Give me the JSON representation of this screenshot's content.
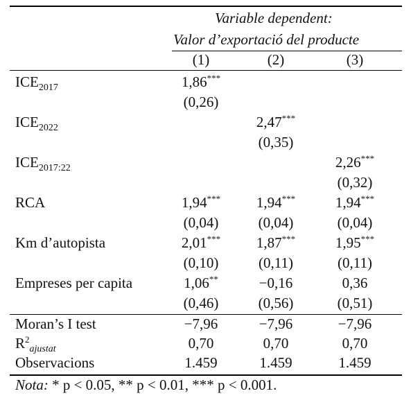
{
  "header": {
    "line1": "Variable dependent:",
    "line2": "Valor d’exportació del producte",
    "cols": [
      "(1)",
      "(2)",
      "(3)"
    ]
  },
  "rows": [
    {
      "label": "ICE",
      "sub": "2017",
      "vals": [
        "1,86",
        "",
        ""
      ],
      "stars": [
        "***",
        "",
        ""
      ],
      "se": [
        "(0,26)",
        "",
        ""
      ]
    },
    {
      "label": "ICE",
      "sub": "2022",
      "vals": [
        "",
        "2,47",
        ""
      ],
      "stars": [
        "",
        "***",
        ""
      ],
      "se": [
        "",
        "(0,35)",
        ""
      ]
    },
    {
      "label": "ICE",
      "sub": "2017:22",
      "vals": [
        "",
        "",
        "2,26"
      ],
      "stars": [
        "",
        "",
        "***"
      ],
      "se": [
        "",
        "",
        "(0,32)"
      ]
    },
    {
      "label": "RCA",
      "sub": "",
      "vals": [
        "1,94",
        "1,94",
        "1,94"
      ],
      "stars": [
        "***",
        "***",
        "***"
      ],
      "se": [
        "(0,04)",
        "(0,04)",
        "(0,04)"
      ]
    },
    {
      "label": "Km d’autopista",
      "sub": "",
      "vals": [
        "2,01",
        "1,87",
        "1,95"
      ],
      "stars": [
        "***",
        "***",
        "***"
      ],
      "se": [
        "(0,10)",
        "(0,11)",
        "(0,11)"
      ]
    },
    {
      "label": "Empreses per capita",
      "sub": "",
      "vals": [
        "1,06",
        "−0,16",
        "0,36"
      ],
      "stars": [
        "**",
        "",
        ""
      ],
      "se": [
        "(0,46)",
        "(0,56)",
        "(0,51)"
      ]
    }
  ],
  "stats": [
    {
      "label": "Moran’s I test",
      "vals": [
        "−7,96",
        "−7,96",
        "−7,96"
      ]
    },
    {
      "label": "R",
      "sup": "2",
      "sub": "ajustat",
      "vals": [
        "0,70",
        "0,70",
        "0,70"
      ]
    },
    {
      "label": "Observacions",
      "vals": [
        "1.459",
        "1.459",
        "1.459"
      ]
    }
  ],
  "note": {
    "prefix": "Nota:",
    "text": " * p < 0.05, ** p < 0.01, *** p < 0.001."
  }
}
